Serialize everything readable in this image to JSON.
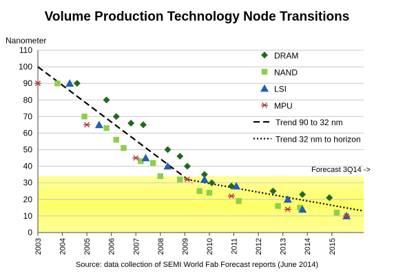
{
  "chart_data": {
    "type": "scatter",
    "title": "Volume Production Technology Node Transitions",
    "ylabel": "Nanometer",
    "xlabel": "",
    "ylim": [
      0,
      110
    ],
    "y_ticks": [
      0,
      10,
      20,
      30,
      40,
      50,
      60,
      70,
      80,
      90,
      100,
      110
    ],
    "xlim": [
      2003,
      2016.3
    ],
    "x_ticks": [
      2003,
      2004,
      2005,
      2006,
      2007,
      2008,
      2009,
      2010,
      2011,
      2012,
      2013,
      2014,
      2015
    ],
    "grid": "horizontal",
    "legend_position": "top-right",
    "forecast_band": {
      "label": "Forecast 3Q14 ->",
      "y_range": [
        0,
        34
      ],
      "color": "#ffff66"
    },
    "source": "Source: data collection of SEMI World Fab Forecast reports (June 2014)",
    "series": [
      {
        "name": "DRAM",
        "marker": "diamond",
        "color": "#1e6b1e",
        "points": [
          [
            2004.6,
            90
          ],
          [
            2005.8,
            80
          ],
          [
            2006.2,
            70
          ],
          [
            2006.8,
            66
          ],
          [
            2007.3,
            65
          ],
          [
            2008.3,
            50
          ],
          [
            2008.8,
            46
          ],
          [
            2009.1,
            40
          ],
          [
            2009.8,
            35
          ],
          [
            2010.1,
            30
          ],
          [
            2010.9,
            28
          ],
          [
            2012.6,
            25
          ],
          [
            2013.8,
            23
          ],
          [
            2014.9,
            21
          ]
        ]
      },
      {
        "name": "NAND",
        "marker": "square",
        "color": "#8ccf4a",
        "points": [
          [
            2003.8,
            90
          ],
          [
            2004.9,
            70
          ],
          [
            2005.8,
            63
          ],
          [
            2006.2,
            56
          ],
          [
            2006.5,
            51
          ],
          [
            2007.2,
            43
          ],
          [
            2007.7,
            42
          ],
          [
            2008.0,
            34
          ],
          [
            2008.8,
            32
          ],
          [
            2009.6,
            25
          ],
          [
            2010.0,
            24
          ],
          [
            2011.2,
            19
          ],
          [
            2012.8,
            16
          ],
          [
            2013.7,
            15
          ],
          [
            2015.2,
            12
          ]
        ]
      },
      {
        "name": "LSI",
        "marker": "triangle",
        "color": "#1f5fb4",
        "points": [
          [
            2004.3,
            90
          ],
          [
            2005.5,
            65
          ],
          [
            2007.4,
            45
          ],
          [
            2008.3,
            40
          ],
          [
            2009.8,
            32
          ],
          [
            2011.1,
            28
          ],
          [
            2013.2,
            20
          ],
          [
            2013.8,
            14
          ],
          [
            2015.6,
            10
          ]
        ]
      },
      {
        "name": "MPU",
        "marker": "star",
        "color": "#b23a3a",
        "points": [
          [
            2003.0,
            90
          ],
          [
            2005.0,
            65
          ],
          [
            2007.0,
            45
          ],
          [
            2009.1,
            32
          ],
          [
            2010.9,
            22
          ],
          [
            2013.2,
            14
          ],
          [
            2015.6,
            10
          ]
        ]
      }
    ],
    "trend_lines": [
      {
        "name": "Trend 90 to 32 nm",
        "style": "dashed",
        "from": [
          2003.0,
          100
        ],
        "to": [
          2009.3,
          30
        ]
      },
      {
        "name": "Trend 32 nm to horizon",
        "style": "dotted",
        "from": [
          2009.1,
          32
        ],
        "to": [
          2016.3,
          13
        ]
      }
    ]
  }
}
